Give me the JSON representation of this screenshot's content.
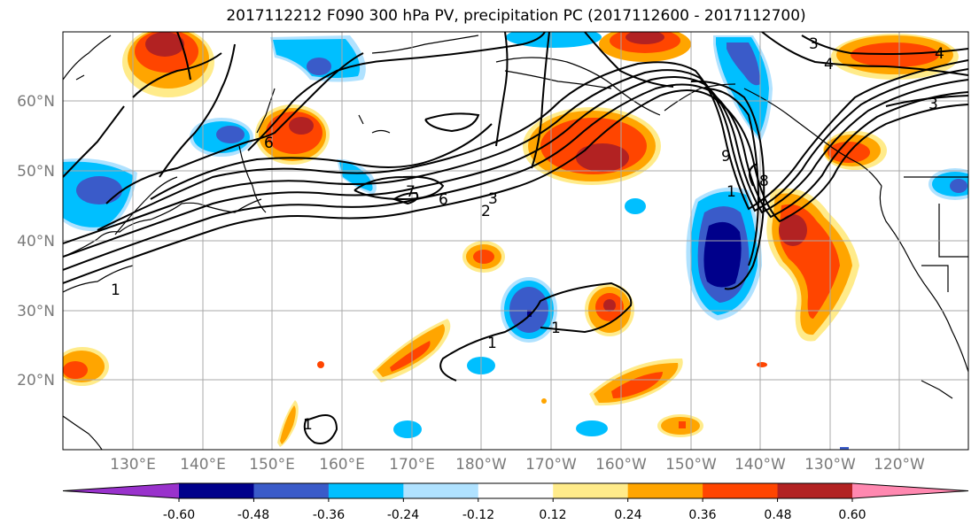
{
  "title": "2017112212 F090 300 hPa PV, precipitation PC (2017112600 - 2017112700)",
  "lat_labels": [
    "60°N",
    "50°N",
    "40°N",
    "30°N",
    "20°N"
  ],
  "lon_labels": [
    "130°E",
    "140°E",
    "150°E",
    "160°E",
    "170°E",
    "180°W",
    "170°W",
    "160°W",
    "150°W",
    "140°W",
    "130°W",
    "120°W"
  ],
  "colorbar": {
    "ticks": [
      "-0.60",
      "-0.48",
      "-0.36",
      "-0.24",
      "-0.12",
      "0.12",
      "0.24",
      "0.36",
      "0.48",
      "0.60"
    ],
    "colors": [
      "#9932cc",
      "#00008b",
      "#3a5bc9",
      "#00bfff",
      "#b0e2ff",
      "#ffffff",
      "#ffeb8a",
      "#ffa500",
      "#ff4500",
      "#b22222",
      "#ff88b0"
    ]
  },
  "contour_labels": [
    "1",
    "1",
    "1",
    "1",
    "1",
    "2",
    "3",
    "3",
    "3",
    "4",
    "4",
    "6",
    "6",
    "7",
    "8",
    "9"
  ]
}
